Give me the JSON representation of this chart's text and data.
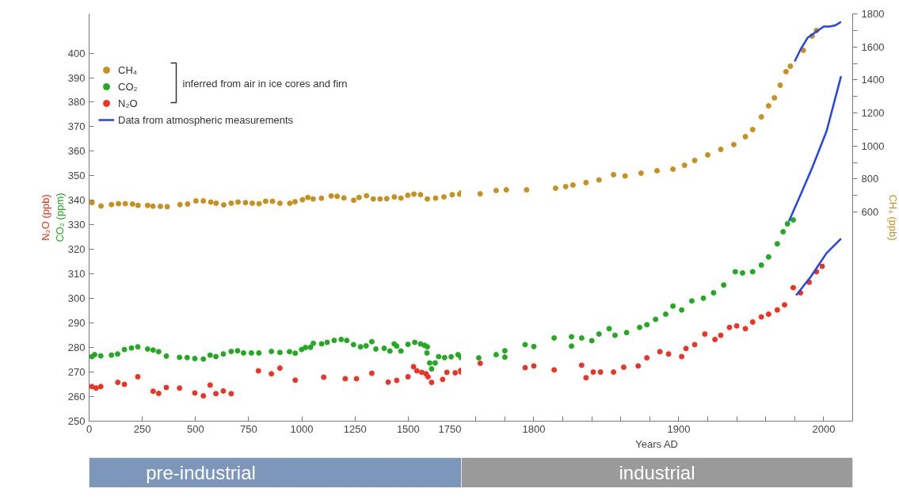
{
  "chart_data": [
    {
      "type": "scatter",
      "ylabel": "CO₂ (ppm)",
      "annotations": [
        "inferred from air in ice cores and firn",
        "N₂O (ppb)",
        "pre-industrial"
      ],
      "xlim": [
        0,
        1750
      ],
      "ylim": [
        250,
        416
      ],
      "y2lim": [
        -667,
        1800
      ],
      "xticks": [
        0,
        250,
        500,
        750,
        1000,
        1250,
        1500,
        1750
      ],
      "yticks": [
        250,
        260,
        270,
        280,
        290,
        300,
        310,
        320,
        330,
        340,
        350,
        360,
        370,
        380,
        390,
        400
      ],
      "grid": false,
      "legend": "top left",
      "marker": "circle",
      "series": [
        {
          "name": "CH₄",
          "color": "#c8901e",
          "axis": "y2",
          "x": [
            14,
            56,
            105,
            138,
            170,
            204,
            230,
            275,
            300,
            335,
            367,
            427,
            463,
            502,
            537,
            572,
            597,
            633,
            668,
            700,
            735,
            767,
            799,
            830,
            862,
            897,
            943,
            968,
            1003,
            1028,
            1053,
            1092,
            1138,
            1166,
            1198,
            1244,
            1269,
            1304,
            1336,
            1368,
            1399,
            1435,
            1466,
            1498,
            1527,
            1558,
            1590,
            1629,
            1668,
            1707,
            1742,
            1748
          ],
          "values": [
            657,
            636,
            645,
            650,
            650,
            648,
            640,
            640,
            635,
            634,
            632,
            645,
            648,
            667,
            667,
            660,
            653,
            643,
            653,
            660,
            657,
            653,
            650,
            665,
            665,
            653,
            653,
            662,
            674,
            688,
            679,
            683,
            697,
            695,
            685,
            671,
            688,
            698,
            679,
            679,
            681,
            691,
            684,
            701,
            708,
            705,
            679,
            684,
            691,
            705,
            708,
            715
          ]
        },
        {
          "name": "CO₂",
          "color": "#22aa22",
          "x": [
            13,
            26,
            55,
            105,
            134,
            166,
            199,
            229,
            275,
            301,
            327,
            363,
            425,
            461,
            497,
            537,
            569,
            596,
            631,
            668,
            698,
            726,
            763,
            798,
            857,
            897,
            942,
            969,
            999,
            1017,
            1041,
            1054,
            1093,
            1119,
            1152,
            1185,
            1211,
            1243,
            1276,
            1302,
            1329,
            1348,
            1387,
            1414,
            1434,
            1446,
            1466,
            1499,
            1531,
            1558,
            1577,
            1590,
            1588,
            1601,
            1610,
            1627,
            1643,
            1671,
            1702,
            1734,
            1749,
            1748
          ],
          "values": [
            276.3,
            277.1,
            276.6,
            276.9,
            277.4,
            279.2,
            279.8,
            280.3,
            279.4,
            279,
            278.3,
            276.5,
            276,
            275.9,
            275.5,
            275.3,
            276.9,
            276.3,
            277.4,
            278.4,
            278.7,
            277.8,
            277.8,
            277.8,
            278.4,
            278,
            278.3,
            277.7,
            279.2,
            280,
            280.1,
            281.7,
            281.5,
            282.1,
            282.9,
            283.3,
            282.9,
            281.2,
            280.3,
            280.7,
            282.4,
            279.4,
            279.7,
            278.6,
            281.5,
            280.6,
            278.6,
            281.3,
            282.1,
            281.5,
            280.9,
            280.3,
            277.8,
            273.7,
            271.3,
            273.7,
            276.3,
            275.9,
            276.2,
            277.1,
            275.9,
            276.3
          ]
        },
        {
          "name": "N₂O",
          "color": "#ee3322",
          "x": [
            13,
            33,
            55,
            135,
            166,
            229,
            301,
            327,
            363,
            425,
            497,
            537,
            569,
            596,
            631,
            668,
            796,
            857,
            897,
            969,
            1103,
            1204,
            1257,
            1329,
            1406,
            1446,
            1499,
            1525,
            1541,
            1564,
            1584,
            1593,
            1610,
            1662,
            1682,
            1721,
            1747,
            1749
          ],
          "values": [
            264.1,
            263.5,
            264.1,
            265.8,
            265,
            268.1,
            262.2,
            261.3,
            263.7,
            263.5,
            261.5,
            260.3,
            264.7,
            261.2,
            262.3,
            261.2,
            270.5,
            269.3,
            271.6,
            266.7,
            267.9,
            267.3,
            267.3,
            269.5,
            265.9,
            266.6,
            268.1,
            272.2,
            270.5,
            269.9,
            269.3,
            268.1,
            265.8,
            267,
            269.9,
            269.7,
            270.7,
            270
          ]
        }
      ]
    },
    {
      "type": "scatter",
      "xlabel": "Years AD",
      "y2label": "CH₄ (ppb)",
      "annotations": [
        "industrial"
      ],
      "xlim": [
        1750,
        2020
      ],
      "ylim": [
        250,
        416
      ],
      "y2lim": [
        -667,
        1800
      ],
      "xticks": [
        {
          "value": 1760,
          "label": null
        },
        {
          "value": 1780,
          "label": null
        },
        1800,
        {
          "value": 1820,
          "label": null
        },
        {
          "value": 1840,
          "label": null
        },
        {
          "value": 1860,
          "label": null
        },
        {
          "value": 1880,
          "label": null
        },
        1900,
        {
          "value": 1920,
          "label": null
        },
        {
          "value": 1940,
          "label": null
        },
        {
          "value": 1960,
          "label": null
        },
        {
          "value": 1980,
          "label": null
        },
        2000
      ],
      "y2ticks": [
        600,
        {
          "value": 700,
          "label": null
        },
        800,
        {
          "value": 900,
          "label": null
        },
        1000,
        {
          "value": 1100,
          "label": null
        },
        1200,
        {
          "value": 1300,
          "label": null
        },
        1400,
        {
          "value": 1500,
          "label": null
        },
        1600,
        {
          "value": 1700,
          "label": null
        },
        1800
      ],
      "grid": false,
      "marker": "circle",
      "series": [
        {
          "color": "#c8901e",
          "axis": "y2",
          "x": [
            1763,
            1774,
            1781,
            1795,
            1815,
            1822,
            1827,
            1836,
            1845,
            1855,
            1863,
            1874,
            1885,
            1896,
            1904,
            1911,
            1920,
            1929,
            1938,
            1946,
            1951,
            1957,
            1962,
            1966,
            1970,
            1974,
            1977,
            1986,
            1992,
            1995
          ],
          "values": [
            710,
            730,
            734,
            734,
            744,
            754,
            763,
            778,
            794,
            826,
            818,
            835,
            850,
            859,
            883,
            912,
            946,
            979,
            1008,
            1056,
            1099,
            1176,
            1243,
            1291,
            1368,
            1450,
            1483,
            1579,
            1666,
            1699
          ]
        },
        {
          "color": "#22aa22",
          "x": [
            1762,
            1774,
            1780,
            1780,
            1794,
            1800,
            1814,
            1826,
            1826,
            1833,
            1840,
            1845,
            1852,
            1856,
            1864,
            1873,
            1878,
            1884,
            1891,
            1896,
            1902,
            1909,
            1917,
            1924,
            1931,
            1939,
            1944,
            1951,
            1957,
            1962,
            1968,
            1972,
            1975,
            1979
          ],
          "values": [
            275.8,
            277.1,
            278.7,
            276.1,
            281.2,
            280.4,
            283.9,
            284.4,
            280.6,
            283.9,
            282.8,
            285.5,
            287.7,
            285,
            286.1,
            288.2,
            289.3,
            291.5,
            293.6,
            296.9,
            295.3,
            299,
            300.1,
            302.3,
            305.5,
            310.9,
            310.4,
            310.9,
            313.6,
            316.9,
            322.3,
            327.2,
            330.4,
            332
          ]
        },
        {
          "color": "#ee3322",
          "x": [
            1763,
            1794,
            1800,
            1814,
            1833,
            1836,
            1841,
            1846,
            1855,
            1862,
            1872,
            1878,
            1887,
            1893,
            1902,
            1905,
            1911,
            1918,
            1925,
            1929,
            1935,
            1940,
            1946,
            1951,
            1957,
            1962,
            1968,
            1973,
            1979,
            1984,
            1990,
            1995,
            1999
          ],
          "values": [
            273.6,
            271.8,
            272.5,
            270.9,
            272.8,
            267.7,
            270,
            270,
            270,
            272,
            272.5,
            275.8,
            278.3,
            277.4,
            276.3,
            279.6,
            281.2,
            285.5,
            283.3,
            285,
            288.2,
            288.8,
            287.7,
            290.4,
            292.5,
            293.6,
            295.3,
            297.4,
            304.4,
            302.3,
            306.6,
            310.9,
            313.1
          ]
        },
        {
          "name": "Data from atmospheric measurements",
          "color": "#2244ee",
          "type": "line",
          "marker": "none",
          "axis": "y2",
          "x": [
            1980,
            1984,
            1989,
            2000,
            2004,
            2008,
            2012
          ],
          "values": [
            1512,
            1584,
            1656,
            1723,
            1723,
            1730,
            1752
          ]
        },
        {
          "color": "#2244ee",
          "type": "line",
          "marker": "none",
          "x": [
            1976,
            1984,
            1992,
            2002,
            2012
          ],
          "values": [
            331.5,
            342.2,
            353.2,
            368.2,
            390.6
          ]
        },
        {
          "color": "#2244ee",
          "type": "line",
          "marker": "none",
          "x": [
            1981,
            1991,
            2002,
            2012
          ],
          "values": [
            301.3,
            308.8,
            318.5,
            324.4
          ]
        }
      ]
    }
  ]
}
